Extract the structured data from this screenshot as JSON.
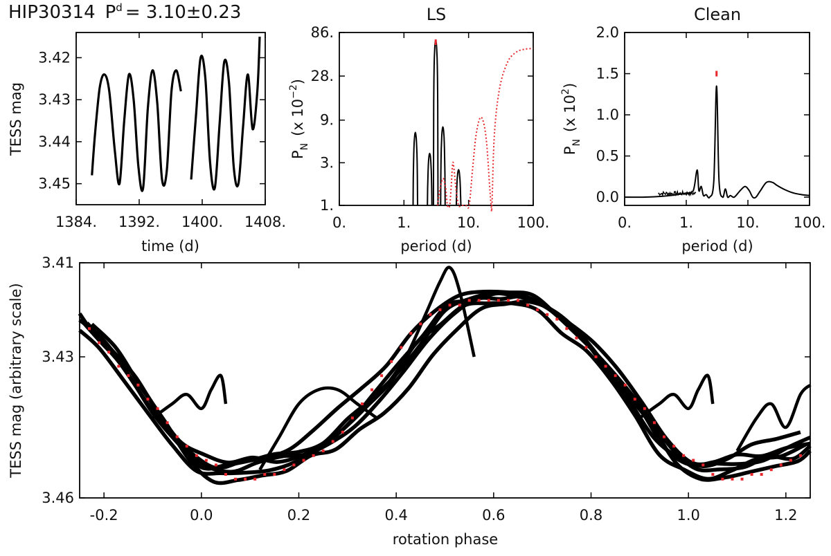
{
  "figure_title": {
    "star": "HIP30314",
    "p_symbol": "P",
    "p_sup": "d",
    "p_value": "= 3.10±0.23"
  },
  "colors": {
    "data": "#000000",
    "model": "#e8262b",
    "frame": "#000000"
  },
  "chart_data": [
    {
      "id": "lightcurve",
      "type": "scatter",
      "title": "",
      "xlabel": "time (d)",
      "ylabel": "TESS mag",
      "xlim": [
        1384,
        1408
      ],
      "ylim": [
        3.455,
        3.414
      ],
      "y_inverted": true,
      "xticks": [
        1384,
        1392,
        1400,
        1408
      ],
      "xtick_labels": [
        "1384.",
        "1392.",
        "1400.",
        "1408."
      ],
      "yticks": [
        3.42,
        3.43,
        3.44,
        3.45
      ],
      "ytick_labels": [
        "3.42",
        "3.43",
        "3.44",
        "3.45"
      ],
      "series": [
        {
          "name": "TESS photometry",
          "color": "#000000",
          "segments": [
            {
              "t": [
                1386.0,
                1386.4,
                1387.0,
                1387.6,
                1388.2,
                1388.9,
                1389.5,
                1390.1,
                1390.7,
                1391.3,
                1391.9,
                1392.5,
                1393.1,
                1393.7,
                1394.3,
                1394.9,
                1395.5,
                1396.1,
                1396.7,
                1397.3
              ],
              "mag": [
                3.448,
                3.438,
                3.427,
                3.424,
                3.428,
                3.442,
                3.45,
                3.435,
                3.424,
                3.43,
                3.446,
                3.451,
                3.432,
                3.423,
                3.431,
                3.449,
                3.447,
                3.428,
                3.423,
                3.428
              ]
            },
            {
              "t": [
                1398.6,
                1399.2,
                1399.8,
                1400.4,
                1401.0,
                1401.6,
                1402.2,
                1402.8,
                1403.4,
                1404.0,
                1404.6,
                1405.2,
                1405.8,
                1406.4,
                1407.0,
                1407.3
              ],
              "mag": [
                3.449,
                3.434,
                3.42,
                3.425,
                3.445,
                3.451,
                3.436,
                3.421,
                3.426,
                3.446,
                3.45,
                3.436,
                3.424,
                3.437,
                3.428,
                3.415
              ]
            }
          ]
        }
      ]
    },
    {
      "id": "ls",
      "type": "line",
      "title": "LS",
      "xlabel": "period (d)",
      "ylabel_main": "P",
      "ylabel_sub": "N",
      "ylabel_rest": "(x 10",
      "ylabel_exp": "−2",
      "ylabel_end": ")",
      "xscale": "log",
      "yscale": "log",
      "xlim": [
        0.1,
        100
      ],
      "ylim": [
        1,
        86
      ],
      "xticks": [
        0.1,
        1,
        10,
        100
      ],
      "xtick_labels": [
        "0.",
        "1.",
        "10.",
        "100."
      ],
      "yticks": [
        1,
        3,
        9,
        28,
        86
      ],
      "ytick_labels": [
        "1.",
        "3.",
        "9.",
        "28.",
        "86."
      ],
      "peak_marker_period": 3.1,
      "series": [
        {
          "name": "periodogram",
          "style": "solid",
          "color": "#000000",
          "peaks": [
            [
              1.5,
              6.5
            ],
            [
              2.5,
              3.8
            ],
            [
              3.1,
              70.0
            ],
            [
              4.0,
              7.5
            ],
            [
              7.0,
              2.5
            ]
          ]
        },
        {
          "name": "window function",
          "style": "dotted",
          "color": "#e8262b",
          "period": [
            3.3,
            3.6,
            4.0,
            4.4,
            4.7,
            5.1,
            5.4,
            5.7,
            6.0,
            6.4,
            7.0,
            7.7,
            9.0,
            10.2,
            11.5,
            13.0,
            15.0,
            17.0,
            19.0,
            21.0,
            22.3,
            23.0,
            25.0,
            30.0,
            40.0,
            55.0,
            75.0,
            100.0
          ],
          "power": [
            1.0,
            1.5,
            2.0,
            1.6,
            1.0,
            1.0,
            1.7,
            3.0,
            2.4,
            1.5,
            1.0,
            1.0,
            1.0,
            1.0,
            2.5,
            6.0,
            9.5,
            8.5,
            5.0,
            1.8,
            1.0,
            1.0,
            6.0,
            20.0,
            40.0,
            52.0,
            56.0,
            57.0
          ]
        }
      ]
    },
    {
      "id": "clean",
      "type": "line",
      "title": "Clean",
      "xlabel": "period (d)",
      "ylabel_main": "P",
      "ylabel_sub": "N",
      "ylabel_rest": "(x 10",
      "ylabel_exp": "2",
      "ylabel_end": ")",
      "xscale": "log",
      "xlim": [
        0.1,
        100
      ],
      "ylim": [
        -0.1,
        2.0
      ],
      "xticks": [
        0.1,
        1,
        10,
        100
      ],
      "xtick_labels": [
        "0.",
        "1.",
        "10.",
        "100."
      ],
      "yticks": [
        0.0,
        0.5,
        1.0,
        1.5,
        2.0
      ],
      "ytick_labels": [
        "0.0",
        "0.5",
        "1.0",
        "1.5",
        "2.0"
      ],
      "peak_marker_period": 3.1,
      "peak_marker_level": 1.5,
      "series": [
        {
          "name": "clean spectrum",
          "style": "solid",
          "color": "#000000",
          "period": [
            0.1,
            0.2,
            0.4,
            0.7,
            1.0,
            1.3,
            1.5,
            1.6,
            1.75,
            1.9,
            2.1,
            2.4,
            2.8,
            3.1,
            3.4,
            3.9,
            4.3,
            4.7,
            5.2,
            6.0,
            7.5,
            9.0,
            10.5,
            12.0,
            13.5,
            16.0,
            20.0,
            25.0,
            30.0,
            40.0,
            55.0,
            75.0,
            100.0
          ],
          "power": [
            0.0,
            0.0,
            0.01,
            0.03,
            0.05,
            0.08,
            0.33,
            0.08,
            0.13,
            0.02,
            0.03,
            0.0,
            0.2,
            1.35,
            0.2,
            0.0,
            0.1,
            0.0,
            0.02,
            0.0,
            0.08,
            0.13,
            0.08,
            0.0,
            0.0,
            0.08,
            0.18,
            0.18,
            0.14,
            0.09,
            0.05,
            0.03,
            0.02
          ]
        }
      ]
    },
    {
      "id": "phased",
      "type": "scatter",
      "title": "",
      "xlabel": "rotation phase",
      "ylabel": "TESS mag (arbitrary scale)",
      "xlim": [
        -0.25,
        1.25
      ],
      "ylim": [
        3.46,
        3.41
      ],
      "y_inverted": true,
      "xticks": [
        -0.2,
        0.0,
        0.2,
        0.4,
        0.6,
        0.8,
        1.0,
        1.2
      ],
      "xtick_labels": [
        "-0.2",
        "0.0",
        "0.2",
        "0.4",
        "0.6",
        "0.8",
        "1.0",
        "1.2"
      ],
      "yticks": [
        3.41,
        3.43,
        3.46
      ],
      "ytick_labels": [
        "3.41",
        "3.43",
        "3.46"
      ],
      "series": [
        {
          "name": "phased cycles",
          "color": "#000000",
          "base": {
            "phase": [
              -0.25,
              -0.2,
              -0.15,
              -0.1,
              -0.05,
              0.0,
              0.05,
              0.1,
              0.15,
              0.2,
              0.25,
              0.3,
              0.35,
              0.4,
              0.45,
              0.5,
              0.55,
              0.6,
              0.65,
              0.7,
              0.75,
              0.8,
              0.85,
              0.9,
              0.95,
              1.0,
              1.05,
              1.1,
              1.15,
              1.2,
              1.25
            ],
            "mag": [
              3.423,
              3.428,
              3.435,
              3.442,
              3.449,
              3.453,
              3.454,
              3.453,
              3.452,
              3.451,
              3.449,
              3.445,
              3.44,
              3.434,
              3.427,
              3.421,
              3.418,
              3.417,
              3.418,
              3.42,
              3.424,
              3.429,
              3.435,
              3.442,
              3.449,
              3.453,
              3.454,
              3.453,
              3.452,
              3.451,
              3.449
            ]
          },
          "cycle_offsets": [
            -0.0035,
            -0.0015,
            0.0,
            0.0015,
            0.003,
            -0.002
          ],
          "cycle_phase_shifts": [
            -0.02,
            0.0,
            0.015,
            -0.01,
            0.025,
            0.005
          ],
          "flares": [
            {
              "phase": [
                0.38,
                0.42,
                0.46,
                0.49,
                0.51,
                0.53,
                0.56
              ],
              "mag": [
                3.436,
                3.43,
                3.421,
                3.414,
                3.411,
                3.416,
                3.43
              ]
            },
            {
              "phase": [
                -0.1,
                -0.06,
                -0.03,
                0.0,
                0.02,
                0.04,
                0.05
              ],
              "mag": [
                3.443,
                3.44,
                3.438,
                3.441,
                3.437,
                3.434,
                3.44
              ]
            },
            {
              "phase": [
                0.12,
                0.16,
                0.2,
                0.24,
                0.28,
                0.32,
                0.36
              ],
              "mag": [
                3.454,
                3.447,
                3.44,
                3.437,
                3.437,
                3.44,
                3.443
              ]
            },
            {
              "phase": [
                0.9,
                0.94,
                0.97,
                1.0,
                1.02,
                1.04,
                1.05
              ],
              "mag": [
                3.443,
                3.44,
                3.438,
                3.441,
                3.437,
                3.434,
                3.44
              ]
            },
            {
              "phase": [
                1.1,
                1.14,
                1.17,
                1.2,
                1.23,
                1.25
              ],
              "mag": [
                3.45,
                3.443,
                3.44,
                3.445,
                3.438,
                3.436
              ]
            }
          ]
        },
        {
          "name": "model",
          "color": "#e8262b",
          "phase": [
            -0.23,
            -0.21,
            -0.19,
            -0.17,
            -0.15,
            -0.13,
            -0.11,
            -0.09,
            -0.07,
            -0.05,
            -0.03,
            -0.01,
            0.01,
            0.03,
            0.05,
            0.07,
            0.09,
            0.11,
            0.13,
            0.15,
            0.17,
            0.19,
            0.21,
            0.23,
            0.25,
            0.27,
            0.29,
            0.31,
            0.33,
            0.35,
            0.37,
            0.39,
            0.41,
            0.43,
            0.45,
            0.47,
            0.49,
            0.51,
            0.53,
            0.55,
            0.57,
            0.59,
            0.61,
            0.63,
            0.65,
            0.67,
            0.69,
            0.71,
            0.73,
            0.75,
            0.77,
            0.79,
            0.81,
            0.83,
            0.85,
            0.87,
            0.89,
            0.91,
            0.93,
            0.95,
            0.97,
            0.99,
            1.01,
            1.03,
            1.05,
            1.07,
            1.09,
            1.11,
            1.13,
            1.15,
            1.17,
            1.19,
            1.21,
            1.23
          ],
          "mag": [
            3.424,
            3.427,
            3.429,
            3.432,
            3.434,
            3.436,
            3.439,
            3.441,
            3.444,
            3.447,
            3.449,
            3.451,
            3.452,
            3.453,
            3.455,
            3.456,
            3.456,
            3.456,
            3.455,
            3.455,
            3.454,
            3.453,
            3.452,
            3.451,
            3.45,
            3.448,
            3.446,
            3.443,
            3.44,
            3.437,
            3.434,
            3.431,
            3.428,
            3.425,
            3.423,
            3.421,
            3.42,
            3.419,
            3.419,
            3.418,
            3.418,
            3.418,
            3.418,
            3.418,
            3.418,
            3.419,
            3.42,
            3.421,
            3.422,
            3.424,
            3.426,
            3.428,
            3.43,
            3.432,
            3.434,
            3.436,
            3.439,
            3.441,
            3.444,
            3.447,
            3.449,
            3.451,
            3.452,
            3.453,
            3.455,
            3.456,
            3.456,
            3.456,
            3.455,
            3.455,
            3.454,
            3.453,
            3.452,
            3.451
          ]
        }
      ]
    }
  ]
}
